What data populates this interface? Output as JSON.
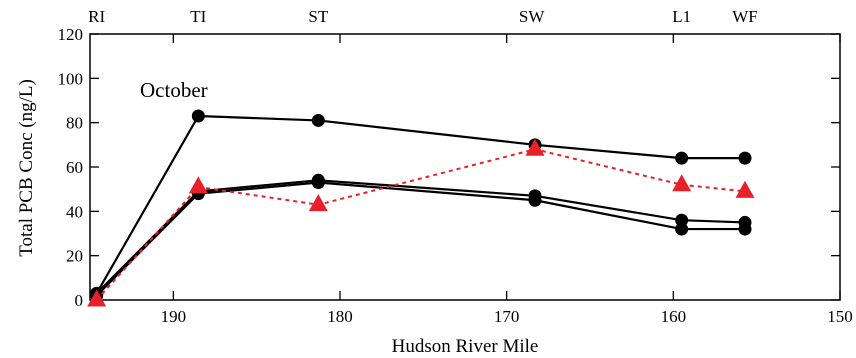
{
  "chart_data": {
    "type": "line",
    "title": "",
    "xlabel": "Hudson River Mile",
    "ylabel": "Total PCB Conc (ng/L)",
    "xlim": [
      195,
      150
    ],
    "ylim": [
      0,
      120
    ],
    "x_reversed": true,
    "xticks": [
      190,
      180,
      170,
      160,
      150
    ],
    "yticks": [
      0,
      20,
      40,
      60,
      80,
      100,
      120
    ],
    "grid": false,
    "annotation": "October",
    "site_labels": [
      {
        "label": "RI",
        "x": 194.6
      },
      {
        "label": "TI",
        "x": 188.5
      },
      {
        "label": "ST",
        "x": 181.3
      },
      {
        "label": "SW",
        "x": 168.5
      },
      {
        "label": "L1",
        "x": 159.5
      },
      {
        "label": "WF",
        "x": 155.7
      }
    ],
    "series": [
      {
        "color": "#000000",
        "marker": "circle",
        "line": "solid",
        "x": [
          194.6,
          188.5,
          181.3,
          168.3,
          159.5,
          155.7
        ],
        "y": [
          3,
          83,
          81,
          70,
          64,
          64
        ]
      },
      {
        "color": "#000000",
        "marker": "circle",
        "line": "solid",
        "x": [
          194.6,
          188.5,
          181.3,
          168.3,
          159.5,
          155.7
        ],
        "y": [
          3,
          49,
          54,
          47,
          36,
          35
        ]
      },
      {
        "color": "#000000",
        "marker": "circle",
        "line": "solid",
        "x": [
          194.6,
          188.5,
          181.3,
          168.3,
          159.5,
          155.7
        ],
        "y": [
          2,
          48,
          53,
          45,
          32,
          32
        ]
      },
      {
        "color": "#e8202a",
        "marker": "triangle",
        "line": "dotted",
        "x": [
          194.6,
          188.5,
          181.3,
          168.3,
          159.5,
          155.7
        ],
        "y": [
          0,
          51,
          43,
          68,
          52,
          49
        ]
      }
    ]
  }
}
